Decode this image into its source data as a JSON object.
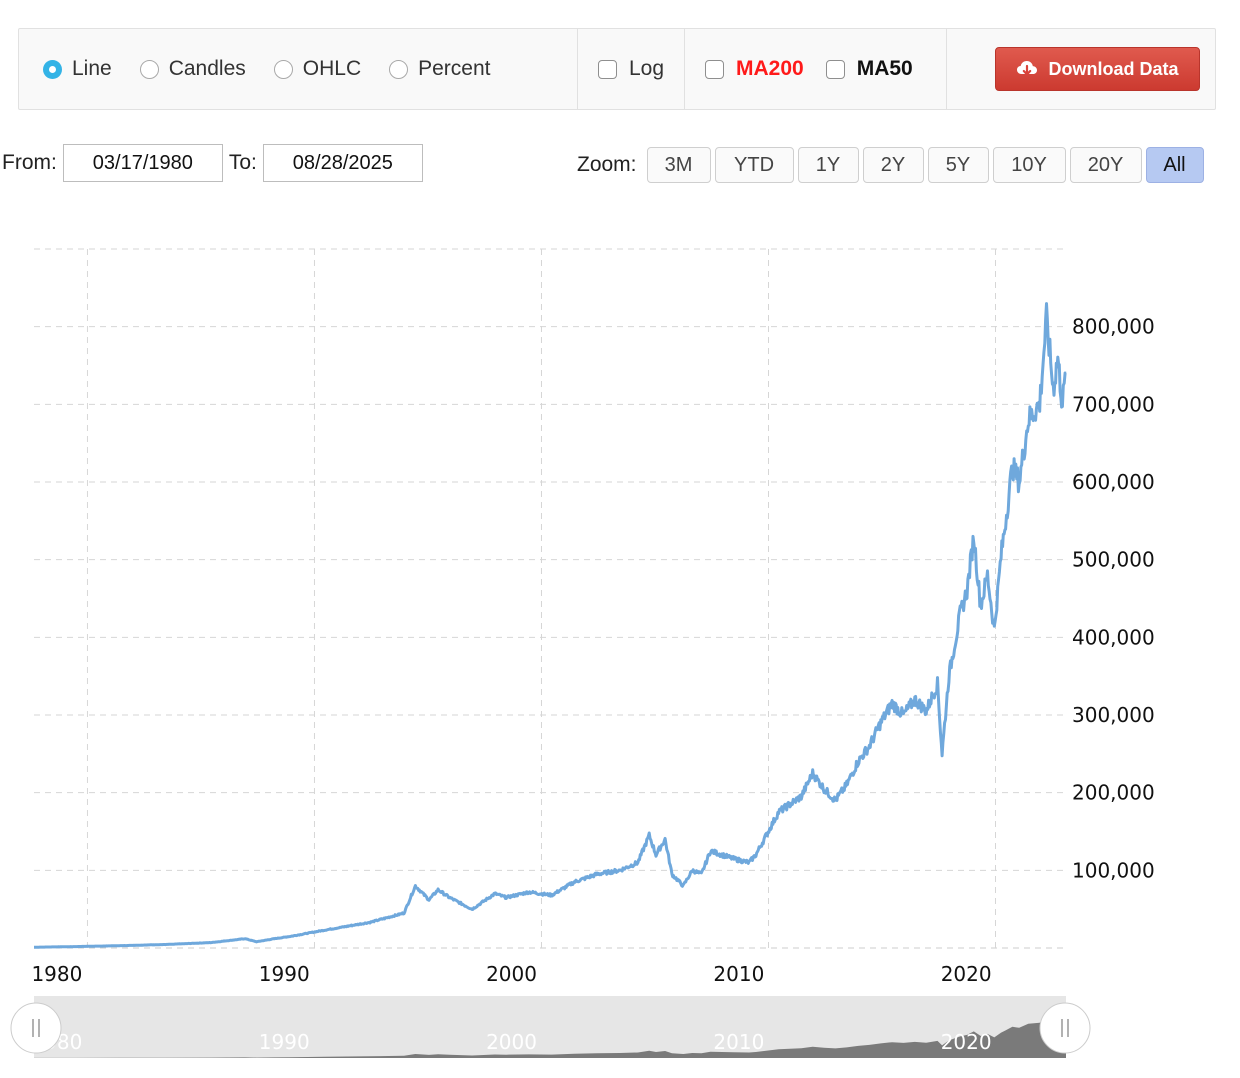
{
  "toolbar": {
    "chart_types": [
      {
        "label": "Line",
        "checked": true
      },
      {
        "label": "Candles",
        "checked": false
      },
      {
        "label": "OHLC",
        "checked": false
      },
      {
        "label": "Percent",
        "checked": false
      }
    ],
    "log_label": "Log",
    "ma200_label": "MA200",
    "ma50_label": "MA50",
    "download_label": "Download Data",
    "colors": {
      "ma200": "#ff1a1a",
      "download": "#d9433a",
      "radio_active": "#33b3e6"
    }
  },
  "range": {
    "from_label": "From:",
    "from_value": "03/17/1980",
    "to_label": "To:",
    "to_value": "08/28/2025"
  },
  "zoom": {
    "label": "Zoom:",
    "buttons": [
      "3M",
      "YTD",
      "1Y",
      "2Y",
      "5Y",
      "10Y",
      "20Y",
      "All"
    ],
    "active": "All"
  },
  "chart_data": {
    "type": "line",
    "title": "",
    "xlabel": "",
    "ylabel": "",
    "series_color": "#6fa8dc",
    "ylim": [
      0,
      900000
    ],
    "xlim": [
      1980.2,
      2025.66
    ],
    "grid": true,
    "y_ticks": [
      "100,000",
      "200,000",
      "300,000",
      "400,000",
      "500,000",
      "600,000",
      "700,000",
      "800,000"
    ],
    "y_tick_values": [
      100000,
      200000,
      300000,
      400000,
      500000,
      600000,
      700000,
      800000
    ],
    "x_ticks": [
      "1980",
      "1990",
      "2000",
      "2010",
      "2020"
    ],
    "x_tick_values": [
      1980,
      1990,
      2000,
      2010,
      2020
    ],
    "series": [
      {
        "x": [
          1980.2,
          1982,
          1984,
          1986,
          1988,
          1989.5,
          1990.0,
          1990.8,
          1991.5,
          1993,
          1995,
          1996.5,
          1997,
          1997.6,
          1998,
          1998.5,
          1999.5,
          2000,
          2000.5,
          2001,
          2002,
          2003,
          2004,
          2005,
          2006,
          2006.8,
          2007.3,
          2007.6,
          2008,
          2008.3,
          2008.8,
          2009.2,
          2009.6,
          2010,
          2011,
          2011.7,
          2012,
          2013,
          2014,
          2014.5,
          2015,
          2015.5,
          2016,
          2016.5,
          2017,
          2017.5,
          2018,
          2018.5,
          2019,
          2019.5,
          2020.0,
          2020.2,
          2020.5,
          2021,
          2021.3,
          2021.6,
          2021.9,
          2022.2,
          2022.5,
          2022.8,
          2023,
          2023.3,
          2023.6,
          2024,
          2024.5,
          2024.8,
          2025.1,
          2025.3,
          2025.5,
          2025.66
        ],
        "y": [
          1000,
          1800,
          3000,
          4500,
          7000,
          12000,
          8000,
          12000,
          15000,
          23000,
          33000,
          45000,
          80000,
          62000,
          75000,
          65000,
          50000,
          60000,
          70000,
          65000,
          72000,
          68000,
          85000,
          95000,
          100000,
          110000,
          145000,
          120000,
          140000,
          95000,
          80000,
          100000,
          95000,
          125000,
          115000,
          110000,
          120000,
          175000,
          195000,
          225000,
          205000,
          190000,
          210000,
          240000,
          260000,
          290000,
          315000,
          300000,
          320000,
          305000,
          340000,
          250000,
          350000,
          430000,
          460000,
          530000,
          440000,
          480000,
          410000,
          505000,
          550000,
          620000,
          600000,
          680000,
          700000,
          810000,
          720000,
          760000,
          700000,
          740000
        ]
      }
    ],
    "navigator_ticks": [
      "1980",
      "1990",
      "2000",
      "2010",
      "2020"
    ]
  }
}
